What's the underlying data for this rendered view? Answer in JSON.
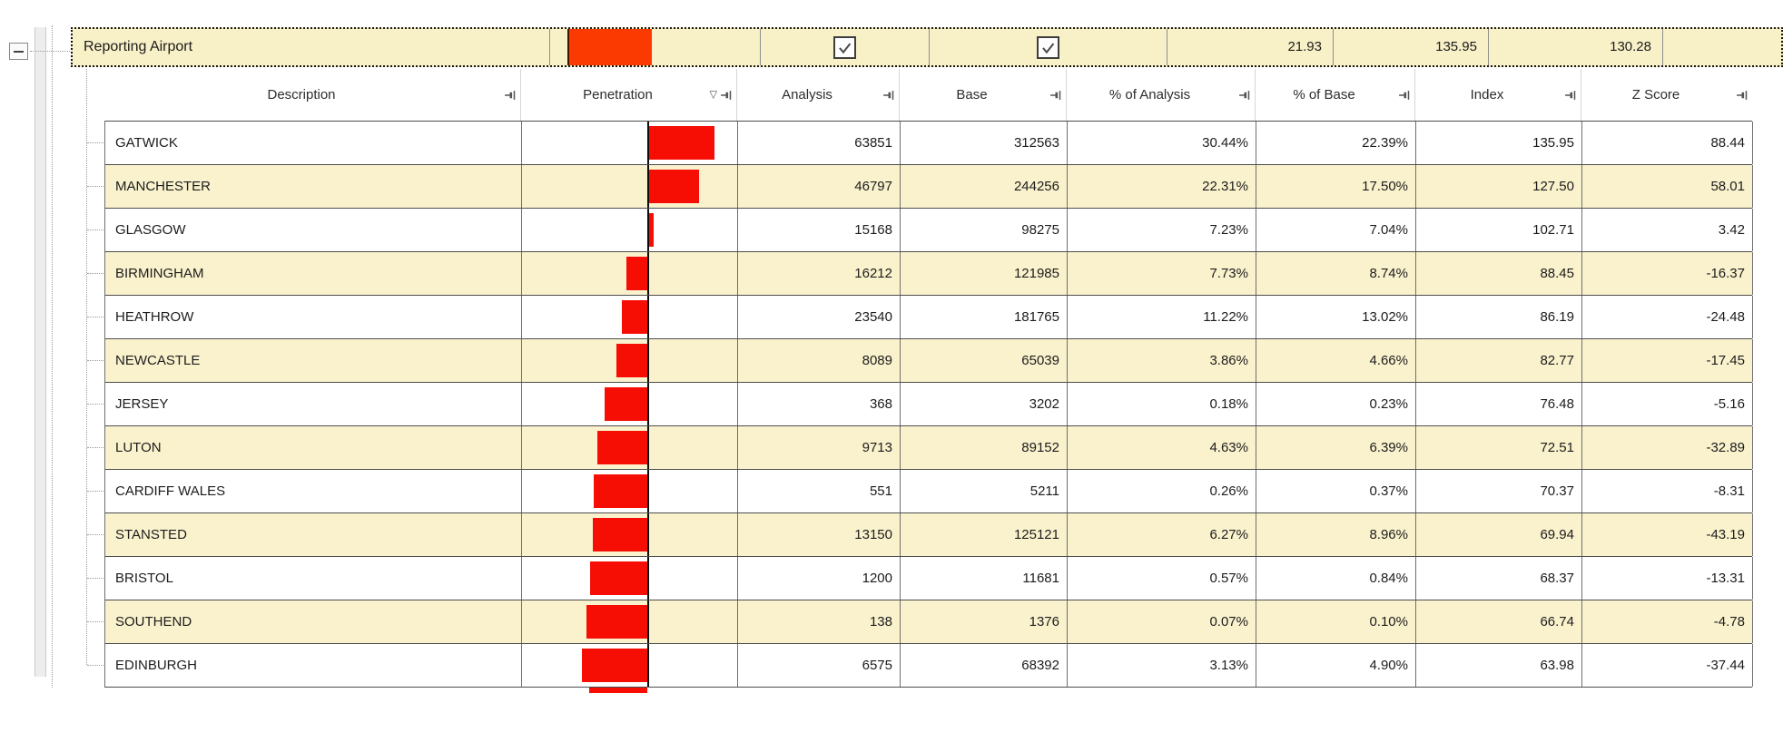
{
  "band": {
    "label": "Reporting Airport",
    "penetration_bar_color": "#fb3a01",
    "checkboxes": [
      {
        "checked": true
      },
      {
        "checked": true
      }
    ],
    "values": [
      "21.93",
      "135.95",
      "130.28"
    ]
  },
  "header": {
    "columns": [
      {
        "id": "description",
        "label": "Description",
        "icons": [
          "pin-icon"
        ]
      },
      {
        "id": "penetration",
        "label": "Penetration",
        "icons": [
          "sort-filter-icon",
          "pin-icon"
        ]
      },
      {
        "id": "analysis",
        "label": "Analysis",
        "icons": [
          "pin-icon"
        ]
      },
      {
        "id": "base",
        "label": "Base",
        "icons": [
          "pin-icon"
        ]
      },
      {
        "id": "pct_analysis",
        "label": "% of Analysis",
        "icons": [
          "pin-icon"
        ]
      },
      {
        "id": "pct_base",
        "label": "% of Base",
        "icons": [
          "pin-icon"
        ]
      },
      {
        "id": "index",
        "label": "Index",
        "icons": [
          "pin-icon"
        ]
      },
      {
        "id": "z_score",
        "label": "Z Score",
        "icons": [
          "pin-icon"
        ]
      }
    ],
    "sort_filter_glyph": "▽"
  },
  "rows": [
    {
      "description": "GATWICK",
      "analysis": "63851",
      "base": "312563",
      "pct_of_analysis": "30.44%",
      "pct_of_base": "22.39%",
      "index": "135.95",
      "z_score": "88.44"
    },
    {
      "description": "MANCHESTER",
      "analysis": "46797",
      "base": "244256",
      "pct_of_analysis": "22.31%",
      "pct_of_base": "17.50%",
      "index": "127.50",
      "z_score": "58.01"
    },
    {
      "description": "GLASGOW",
      "analysis": "15168",
      "base": "98275",
      "pct_of_analysis": "7.23%",
      "pct_of_base": "7.04%",
      "index": "102.71",
      "z_score": "3.42"
    },
    {
      "description": "BIRMINGHAM",
      "analysis": "16212",
      "base": "121985",
      "pct_of_analysis": "7.73%",
      "pct_of_base": "8.74%",
      "index": "88.45",
      "z_score": "-16.37"
    },
    {
      "description": "HEATHROW",
      "analysis": "23540",
      "base": "181765",
      "pct_of_analysis": "11.22%",
      "pct_of_base": "13.02%",
      "index": "86.19",
      "z_score": "-24.48"
    },
    {
      "description": "NEWCASTLE",
      "analysis": "8089",
      "base": "65039",
      "pct_of_analysis": "3.86%",
      "pct_of_base": "4.66%",
      "index": "82.77",
      "z_score": "-17.45"
    },
    {
      "description": "JERSEY",
      "analysis": "368",
      "base": "3202",
      "pct_of_analysis": "0.18%",
      "pct_of_base": "0.23%",
      "index": "76.48",
      "z_score": "-5.16"
    },
    {
      "description": "LUTON",
      "analysis": "9713",
      "base": "89152",
      "pct_of_analysis": "4.63%",
      "pct_of_base": "6.39%",
      "index": "72.51",
      "z_score": "-32.89"
    },
    {
      "description": "CARDIFF WALES",
      "analysis": "551",
      "base": "5211",
      "pct_of_analysis": "0.26%",
      "pct_of_base": "0.37%",
      "index": "70.37",
      "z_score": "-8.31"
    },
    {
      "description": "STANSTED",
      "analysis": "13150",
      "base": "125121",
      "pct_of_analysis": "6.27%",
      "pct_of_base": "8.96%",
      "index": "69.94",
      "z_score": "-43.19"
    },
    {
      "description": "BRISTOL",
      "analysis": "1200",
      "base": "11681",
      "pct_of_analysis": "0.57%",
      "pct_of_base": "0.84%",
      "index": "68.37",
      "z_score": "-13.31"
    },
    {
      "description": "SOUTHEND",
      "analysis": "138",
      "base": "1376",
      "pct_of_analysis": "0.07%",
      "pct_of_base": "0.10%",
      "index": "66.74",
      "z_score": "-4.78"
    },
    {
      "description": "EDINBURGH",
      "analysis": "6575",
      "base": "68392",
      "pct_of_analysis": "3.13%",
      "pct_of_base": "4.90%",
      "index": "63.98",
      "z_score": "-37.44"
    }
  ],
  "truncated_next_row": {
    "bar_partially_visible": true
  },
  "colors": {
    "bar_red": "#f60d04",
    "row_alt_cream": "#faf2cd",
    "band_cream": "#f8f0c7",
    "band_orange": "#fb3a01",
    "grid_line": "#4d4d4d"
  },
  "icons": {
    "pin": "column pushpin",
    "sort_filter": "▽",
    "checkbox_check": "✓",
    "collapse": "−"
  }
}
